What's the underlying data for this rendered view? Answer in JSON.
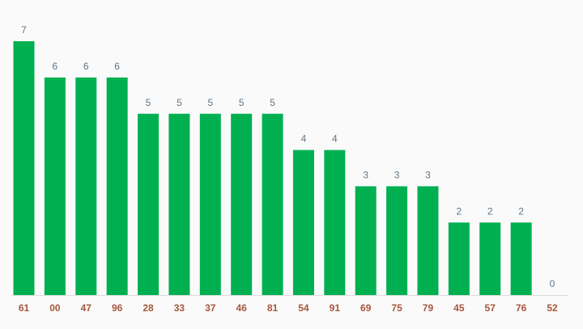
{
  "chart_data": {
    "type": "bar",
    "categories": [
      "61",
      "00",
      "47",
      "96",
      "28",
      "33",
      "37",
      "46",
      "81",
      "54",
      "91",
      "69",
      "75",
      "79",
      "45",
      "57",
      "76",
      "52"
    ],
    "values": [
      7,
      6,
      6,
      6,
      5,
      5,
      5,
      5,
      5,
      4,
      4,
      3,
      3,
      3,
      2,
      2,
      2,
      0
    ],
    "color": "#00b050"
  }
}
